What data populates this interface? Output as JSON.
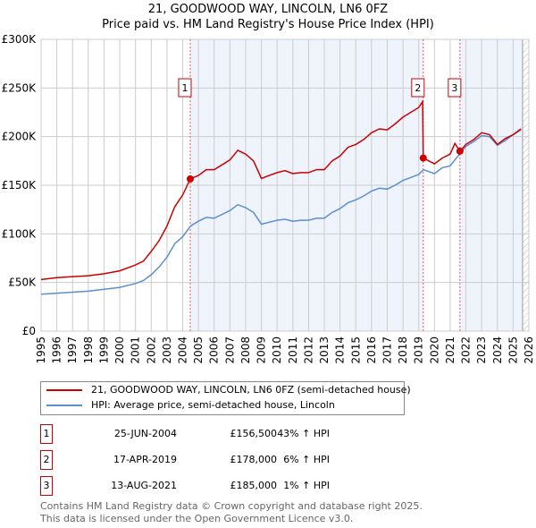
{
  "title": "21, GOODWOOD WAY, LINCOLN, LN6 0FZ",
  "subtitle": "Price paid vs. HM Land Registry's House Price Index (HPI)",
  "chart_data": {
    "type": "line",
    "title": "21, GOODWOOD WAY, LINCOLN, LN6 0FZ",
    "subtitle": "Price paid vs. HM Land Registry's House Price Index (HPI)",
    "xlim": [
      1995,
      2026
    ],
    "ylim": [
      0,
      300000
    ],
    "x_ticks": [
      "1995",
      "1996",
      "1997",
      "1998",
      "1999",
      "2000",
      "2001",
      "2002",
      "2003",
      "2004",
      "2005",
      "2006",
      "2007",
      "2008",
      "2009",
      "2010",
      "2011",
      "2012",
      "2013",
      "2014",
      "2015",
      "2016",
      "2017",
      "2018",
      "2019",
      "2020",
      "2021",
      "2022",
      "2023",
      "2024",
      "2025",
      "2026"
    ],
    "y_ticks": [
      {
        "v": 0,
        "label": "£0"
      },
      {
        "v": 50000,
        "label": "£50K"
      },
      {
        "v": 100000,
        "label": "£100K"
      },
      {
        "v": 150000,
        "label": "£150K"
      },
      {
        "v": 200000,
        "label": "£200K"
      },
      {
        "v": 250000,
        "label": "£250K"
      },
      {
        "v": 300000,
        "label": "£300K"
      }
    ],
    "grid": true,
    "shaded_ranges": [
      [
        2004.48,
        2019.29
      ],
      [
        2021.62,
        2025.6
      ]
    ],
    "hatch_from": 2025.6,
    "series": [
      {
        "name": "21, GOODWOOD WAY, LINCOLN, LN6 0FZ (semi-detached house)",
        "color": "#cc0000",
        "x": [
          1995,
          1996,
          1997,
          1998,
          1999,
          2000,
          2001,
          2001.5,
          2002,
          2002.5,
          2003,
          2003.5,
          2004,
          2004.48,
          2005,
          2005.5,
          2006,
          2006.5,
          2007,
          2007.5,
          2008,
          2008.5,
          2009,
          2009.5,
          2010,
          2010.5,
          2011,
          2011.5,
          2012,
          2012.5,
          2013,
          2013.5,
          2014,
          2014.5,
          2015,
          2015.5,
          2016,
          2016.5,
          2017,
          2017.5,
          2018,
          2018.5,
          2019,
          2019.25,
          2019.29,
          2020,
          2020.5,
          2021,
          2021.3,
          2021.62,
          2022,
          2022.5,
          2023,
          2023.5,
          2024,
          2024.5,
          2025,
          2025.5
        ],
        "y": [
          53000,
          55000,
          56000,
          57000,
          59000,
          62000,
          68000,
          72000,
          82000,
          93000,
          108000,
          128000,
          140000,
          156500,
          160000,
          166000,
          166000,
          171000,
          176000,
          186000,
          182000,
          175000,
          157000,
          160000,
          163000,
          165000,
          162000,
          163000,
          163000,
          166000,
          166000,
          175000,
          180000,
          189000,
          192000,
          197000,
          204000,
          208000,
          207000,
          213000,
          220000,
          225000,
          230000,
          236000,
          178000,
          172000,
          178000,
          182000,
          193000,
          185000,
          192000,
          197000,
          204000,
          202000,
          192000,
          198000,
          202000,
          208000
        ]
      },
      {
        "name": "HPI: Average price, semi-detached house, Lincoln",
        "color": "#5b8fd0",
        "x": [
          1995,
          1996,
          1997,
          1998,
          1999,
          2000,
          2001,
          2001.5,
          2002,
          2002.5,
          2003,
          2003.5,
          2004,
          2004.5,
          2005,
          2005.5,
          2006,
          2006.5,
          2007,
          2007.5,
          2008,
          2008.5,
          2009,
          2009.5,
          2010,
          2010.5,
          2011,
          2011.5,
          2012,
          2012.5,
          2013,
          2013.5,
          2014,
          2014.5,
          2015,
          2015.5,
          2016,
          2016.5,
          2017,
          2017.5,
          2018,
          2018.5,
          2019,
          2019.3,
          2020,
          2020.5,
          2021,
          2021.5,
          2022,
          2022.5,
          2023,
          2023.5,
          2024,
          2024.5,
          2025,
          2025.5
        ],
        "y": [
          38000,
          39000,
          40000,
          41000,
          43000,
          45000,
          49000,
          52000,
          58000,
          66000,
          76000,
          90000,
          97000,
          108000,
          113000,
          117000,
          116000,
          120000,
          124000,
          130000,
          127000,
          122000,
          110000,
          112000,
          114000,
          115000,
          113000,
          114000,
          114000,
          116000,
          116000,
          122000,
          126000,
          132000,
          135000,
          139000,
          144000,
          147000,
          146000,
          150000,
          155000,
          158000,
          161000,
          166000,
          162000,
          168000,
          170000,
          180000,
          190000,
          195000,
          201000,
          200000,
          191000,
          196000,
          202000,
          207000
        ]
      }
    ],
    "sales": [
      {
        "num": "1",
        "x": 2004.48,
        "price": 156500,
        "date": "25-JUN-2004",
        "price_label": "£156,500",
        "hpi": "43% ↑ HPI"
      },
      {
        "num": "2",
        "x": 2019.29,
        "price": 178000,
        "date": "17-APR-2019",
        "price_label": "£178,000",
        "hpi": "6% ↑ HPI"
      },
      {
        "num": "3",
        "x": 2021.62,
        "price": 185000,
        "date": "13-AUG-2021",
        "price_label": "£185,000",
        "hpi": "1% ↑ HPI"
      }
    ],
    "legend_placement": "below"
  },
  "legend": {
    "red": "21, GOODWOOD WAY, LINCOLN, LN6 0FZ (semi-detached house)",
    "blue": "HPI: Average price, semi-detached house, Lincoln"
  },
  "footer": {
    "line1": "Contains HM Land Registry data © Crown copyright and database right 2025.",
    "line2": "This data is licensed under the Open Government Licence v3.0."
  }
}
